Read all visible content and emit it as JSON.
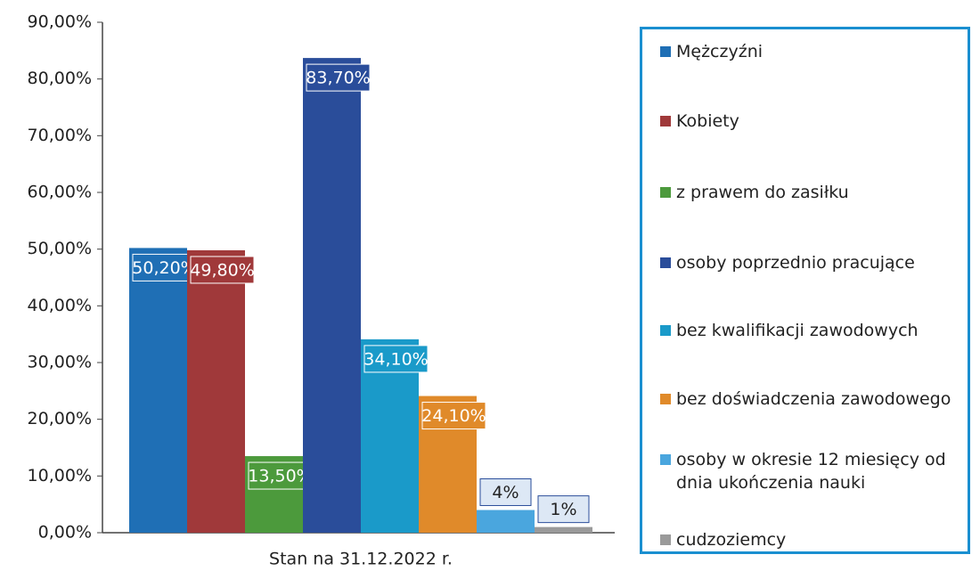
{
  "chart_data": {
    "type": "bar",
    "categories": [
      "Stan na 31.12.2022 r."
    ],
    "series": [
      {
        "name": "Mężczyźni",
        "color": "#1f6fb5",
        "values": [
          50.2
        ],
        "value_labels": [
          "50,20%"
        ]
      },
      {
        "name": "Kobiety",
        "color": "#a0393a",
        "values": [
          49.8
        ],
        "value_labels": [
          "49,80%"
        ]
      },
      {
        "name": "z prawem do zasiłku",
        "color": "#4c9a3c",
        "values": [
          13.5
        ],
        "value_labels": [
          "13,50%"
        ]
      },
      {
        "name": "osoby poprzednio pracujące",
        "color": "#2a4d9a",
        "values": [
          83.7
        ],
        "value_labels": [
          "83,70%"
        ]
      },
      {
        "name": "bez kwalifikacji zawodowych",
        "color": "#1a9ac9",
        "values": [
          34.1
        ],
        "value_labels": [
          "34,10%"
        ]
      },
      {
        "name": "bez doświadczenia zawodowego",
        "color": "#e08a2a",
        "values": [
          24.1
        ],
        "value_labels": [
          "24,10%"
        ]
      },
      {
        "name": "osoby w okresie 12 miesięcy od dnia ukończenia nauki",
        "color": "#4aa6de",
        "values": [
          4
        ],
        "value_labels": [
          "4%"
        ]
      },
      {
        "name": "cudzoziemcy",
        "color": "#9a9a9a",
        "values": [
          1
        ],
        "value_labels": [
          "1%"
        ]
      }
    ],
    "ylim": [
      0,
      90
    ],
    "yticks": [
      {
        "value": 0,
        "label": "0,00%"
      },
      {
        "value": 10,
        "label": "10,00%"
      },
      {
        "value": 20,
        "label": "20,00%"
      },
      {
        "value": 30,
        "label": "30,00%"
      },
      {
        "value": 40,
        "label": "40,00%"
      },
      {
        "value": 50,
        "label": "50,00%"
      },
      {
        "value": 60,
        "label": "60,00%"
      },
      {
        "value": 70,
        "label": "70,00%"
      },
      {
        "value": 80,
        "label": "80,00%"
      },
      {
        "value": 90,
        "label": "90,00%"
      }
    ],
    "legend": "right"
  }
}
